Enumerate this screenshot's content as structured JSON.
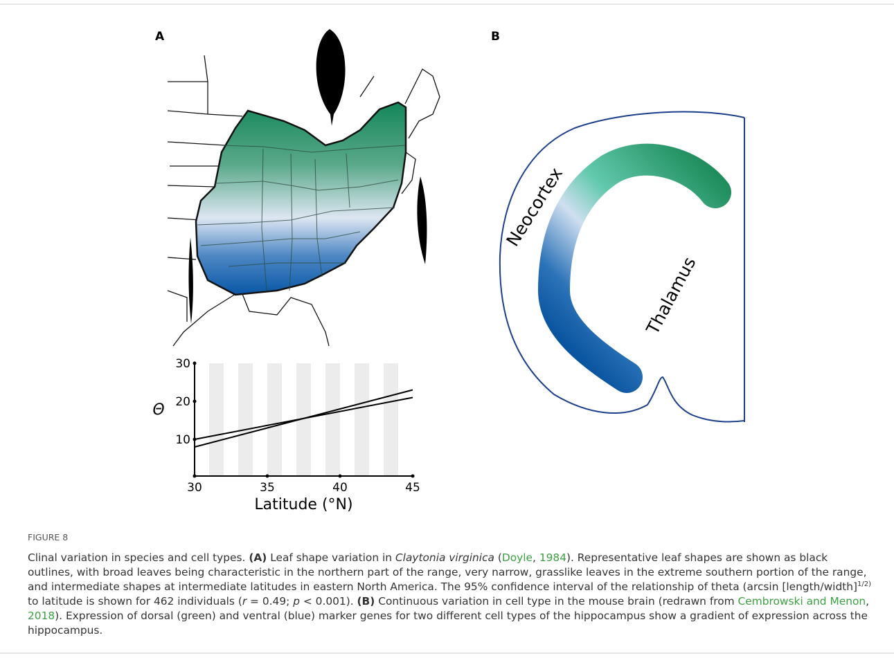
{
  "figure": {
    "panel_a_label": "A",
    "panel_b_label": "B",
    "brain_labels": [
      "Neocortex",
      "Thalamus"
    ]
  },
  "chart_data": {
    "type": "line",
    "x": [
      30,
      45
    ],
    "series": [
      {
        "color": "#000000",
        "values": [
          10,
          21
        ]
      },
      {
        "color": "#000000",
        "values": [
          8,
          23
        ]
      }
    ],
    "xlim": [
      30,
      45
    ],
    "xticks": [
      30,
      35,
      40,
      45
    ],
    "ylim": [
      0,
      30
    ],
    "yticks": [
      10,
      20,
      30
    ],
    "x_label": "Latitude (°N)",
    "y_label": "Θ",
    "grid": false
  },
  "caption": {
    "label": "FIGURE 8",
    "parts": [
      "Clinal variation in species and cell types. ",
      "(A)",
      " Leaf shape variation in ",
      "Claytonia virginica",
      " (",
      "Doyle",
      ", ",
      "1984",
      "). Representative leaf shapes are shown as black outlines, with broad leaves being characteristic in the northern part of the range, very narrow, grasslike leaves in the extreme southern portion of the range, and intermediate shapes at intermediate latitudes in eastern North America. The 95% confidence interval of the relationship of theta (arcsin [length/width]",
      "1/2)",
      " to latitude is shown for 462 individuals (",
      "r",
      " = 0.49; ",
      "p",
      " < 0.001). ",
      "(B)",
      " Continuous variation in cell type in the mouse brain (redrawn from ",
      "Cembrowski and Menon",
      ", ",
      "2018",
      "). Expression of dorsal (green) and ventral (blue) marker genes for two different cell types of the hippocampus show a gradient of expression across the hippocampus."
    ]
  }
}
